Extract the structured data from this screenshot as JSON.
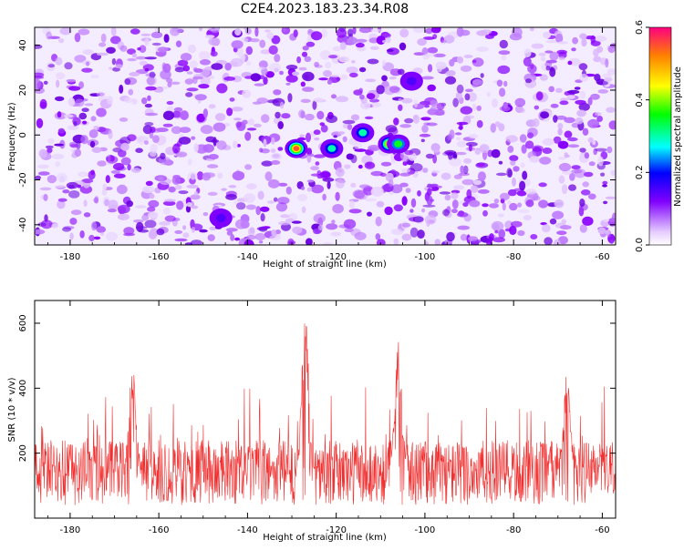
{
  "title": "C2E4.2023.183.23.34.R08",
  "chart_data": [
    {
      "type": "heatmap",
      "xlabel": "Height of straight line (km)",
      "ylabel": "Frequency (Hz)",
      "xlim": [
        -188,
        -57
      ],
      "ylim": [
        -49,
        48
      ],
      "x_ticks": [
        -180,
        -160,
        -140,
        -120,
        -100,
        -80,
        -60
      ],
      "y_ticks": [
        -40,
        -20,
        0,
        20,
        40
      ],
      "grid": false,
      "colorbar": {
        "label": "Normalized spectral amplitude",
        "range": [
          0.0,
          0.6
        ],
        "ticks": [
          0.0,
          0.2,
          0.4,
          0.6
        ],
        "tick_labels": [
          "0.0",
          "0.2",
          "0.4",
          "0.6"
        ]
      },
      "hotspots": [
        {
          "x": -129,
          "y": -6,
          "amplitude": 0.55
        },
        {
          "x": -121,
          "y": -6,
          "amplitude": 0.3
        },
        {
          "x": -114,
          "y": 1,
          "amplitude": 0.3
        },
        {
          "x": -108,
          "y": -4,
          "amplitude": 0.5
        },
        {
          "x": -106,
          "y": -4,
          "amplitude": 0.35
        },
        {
          "x": -103,
          "y": 24,
          "amplitude": 0.15
        },
        {
          "x": -146,
          "y": -37,
          "amplitude": 0.15
        }
      ]
    },
    {
      "type": "line",
      "xlabel": "Height of straight line (km)",
      "ylabel": "SNR (10 * v/v)",
      "xlim": [
        -188,
        -57
      ],
      "ylim": [
        0,
        670
      ],
      "x_ticks": [
        -180,
        -160,
        -140,
        -120,
        -100,
        -80,
        -60
      ],
      "y_ticks": [
        200,
        400,
        600
      ],
      "grid": false,
      "color": "#f03030",
      "baseline_mean": 140,
      "peaks": [
        {
          "x": -127,
          "y": 665
        },
        {
          "x": -106,
          "y": 545
        },
        {
          "x": -166,
          "y": 480
        },
        {
          "x": -68,
          "y": 460
        }
      ]
    }
  ]
}
